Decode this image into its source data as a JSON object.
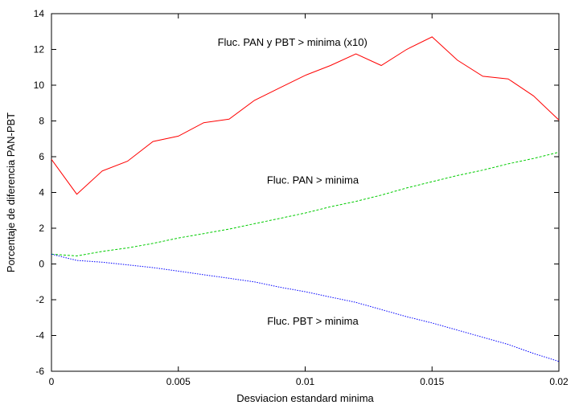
{
  "chart_data": {
    "type": "line",
    "title": "",
    "xlabel": "Desviacion estandard minima",
    "ylabel": "Porcentaje de diferencia PAN-PBT",
    "xlim": [
      0,
      0.02
    ],
    "ylim": [
      -6,
      14
    ],
    "xticks": [
      0,
      0.005,
      0.01,
      0.015,
      0.02
    ],
    "xtick_labels": [
      "0",
      "0.005",
      "0.01",
      "0.015",
      "0.02"
    ],
    "yticks": [
      -6,
      -4,
      -2,
      0,
      2,
      4,
      6,
      8,
      10,
      12,
      14
    ],
    "ytick_labels": [
      "-6",
      "-4",
      "-2",
      "0",
      "2",
      "4",
      "6",
      "8",
      "10",
      "12",
      "14"
    ],
    "grid": false,
    "legend": "none",
    "x": [
      0,
      0.001,
      0.002,
      0.003,
      0.004,
      0.005,
      0.006,
      0.007,
      0.008,
      0.009,
      0.01,
      0.011,
      0.012,
      0.013,
      0.014,
      0.015,
      0.016,
      0.017,
      0.018,
      0.019,
      0.02
    ],
    "series": [
      {
        "color": "#ff0000",
        "dash": "solid",
        "values": [
          5.85,
          3.9,
          5.2,
          5.75,
          6.85,
          7.15,
          7.9,
          8.1,
          9.15,
          9.85,
          10.55,
          11.1,
          11.75,
          11.1,
          12.0,
          12.7,
          11.4,
          10.5,
          10.35,
          9.4,
          8.05
        ]
      },
      {
        "color": "#00cc00",
        "dash": "dashed",
        "values": [
          0.55,
          0.45,
          0.7,
          0.9,
          1.15,
          1.45,
          1.7,
          1.95,
          2.25,
          2.55,
          2.85,
          3.2,
          3.5,
          3.85,
          4.25,
          4.6,
          4.95,
          5.25,
          5.6,
          5.9,
          6.25
        ]
      },
      {
        "color": "#0000ff",
        "dash": "dotted",
        "values": [
          0.55,
          0.2,
          0.1,
          -0.05,
          -0.2,
          -0.4,
          -0.6,
          -0.8,
          -1.0,
          -1.3,
          -1.55,
          -1.85,
          -2.15,
          -2.55,
          -2.95,
          -3.3,
          -3.7,
          -4.1,
          -4.5,
          -5.0,
          -5.45
        ]
      }
    ],
    "annotations": [
      {
        "text": "Fluc. PAN y PBT > minima (x10)",
        "x": 0.0095,
        "y": 12.2
      },
      {
        "text": "Fluc. PAN > minima",
        "x": 0.0103,
        "y": 4.5
      },
      {
        "text": "Fluc. PBT > minima",
        "x": 0.0103,
        "y": -3.4
      }
    ]
  }
}
